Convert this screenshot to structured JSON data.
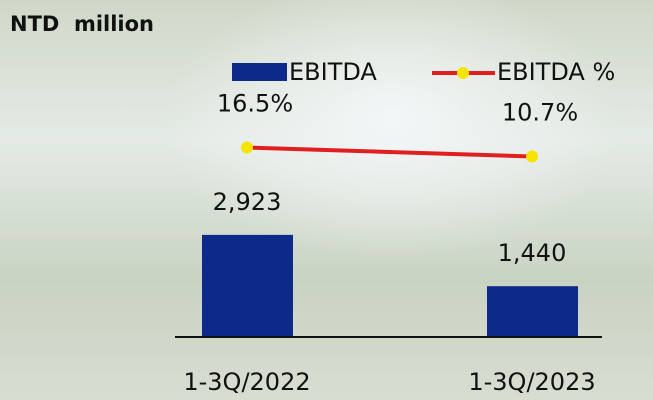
{
  "chart_data": {
    "type": "bar",
    "title": "NTD  million",
    "categories": [
      "1-3Q/2022",
      "1-3Q/2023"
    ],
    "series": [
      {
        "name": "EBITDA",
        "type": "bar",
        "color": "#0d2a8a",
        "values": [
          2923,
          1440
        ],
        "value_labels": [
          "2,923",
          "1,440"
        ]
      },
      {
        "name": "EBITDA %",
        "type": "line",
        "axis": "y2",
        "color": "#e02020",
        "marker_color": "#f5e400",
        "values": [
          16.5,
          10.7
        ],
        "value_labels": [
          "16.5%",
          "10.7%"
        ]
      }
    ],
    "ylim": [
      0,
      7400
    ],
    "y2lim": [
      -105,
      60
    ]
  }
}
